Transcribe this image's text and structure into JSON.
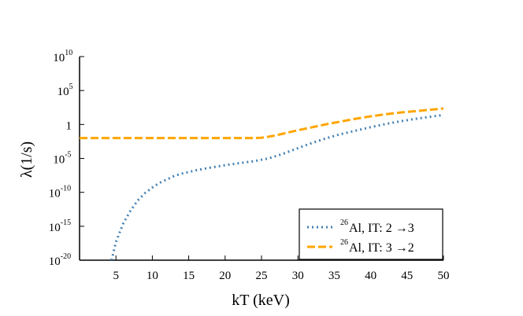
{
  "chart_data": {
    "type": "line",
    "title": "",
    "xlabel": "kT (keV)",
    "ylabel": "λ(1/s)",
    "xlim": [
      0,
      50
    ],
    "ylim_log10": [
      -20,
      10
    ],
    "yscale": "log",
    "grid": false,
    "legend_position": "bottom-right",
    "x_ticks": [
      5,
      10,
      15,
      20,
      25,
      30,
      35,
      40,
      45,
      50
    ],
    "y_ticks": [
      {
        "exp": 10,
        "base": "10",
        "sup": "10"
      },
      {
        "exp": 5,
        "base": "10",
        "sup": "5"
      },
      {
        "exp": 0,
        "base": "1",
        "sup": ""
      },
      {
        "exp": -5,
        "base": "10",
        "sup": "-5"
      },
      {
        "exp": -10,
        "base": "10",
        "sup": "-10"
      },
      {
        "exp": -15,
        "base": "10",
        "sup": "-15"
      },
      {
        "exp": -20,
        "base": "10",
        "sup": "-20"
      }
    ],
    "series": [
      {
        "name": "26Al, IT: 2 →3",
        "legend": {
          "sup": "26",
          "text": "Al, IT: 2 →3"
        },
        "color": "#4682b4",
        "dash": "dotted",
        "x": [
          4.4,
          5,
          6,
          7,
          8,
          9,
          10,
          11,
          12,
          13,
          14,
          15,
          16,
          18,
          20,
          22,
          24,
          25,
          26,
          28,
          30,
          32,
          34,
          36,
          38,
          40,
          42,
          44,
          46,
          48,
          50
        ],
        "log10_y": [
          -20,
          -17.3,
          -14.6,
          -12.7,
          -11.2,
          -10.1,
          -9.3,
          -8.6,
          -8.1,
          -7.6,
          -7.25,
          -7.0,
          -6.75,
          -6.35,
          -6.0,
          -5.7,
          -5.4,
          -5.2,
          -5.0,
          -4.3,
          -3.5,
          -2.7,
          -2.0,
          -1.4,
          -0.9,
          -0.4,
          0.05,
          0.45,
          0.8,
          1.1,
          1.4
        ]
      },
      {
        "name": "26Al, IT: 3 →2",
        "legend": {
          "sup": "26",
          "text": "Al, IT: 3 →2"
        },
        "color": "#ffa500",
        "dash": "dashed",
        "x": [
          0,
          5,
          10,
          15,
          20,
          24,
          25,
          26,
          27,
          28,
          30,
          32,
          34,
          36,
          38,
          40,
          42,
          44,
          46,
          48,
          50
        ],
        "log10_y": [
          -2.0,
          -2.0,
          -2.0,
          -2.0,
          -2.0,
          -2.0,
          -1.95,
          -1.8,
          -1.6,
          -1.35,
          -0.85,
          -0.4,
          0.05,
          0.45,
          0.85,
          1.2,
          1.5,
          1.75,
          1.95,
          2.15,
          2.35
        ]
      }
    ]
  }
}
